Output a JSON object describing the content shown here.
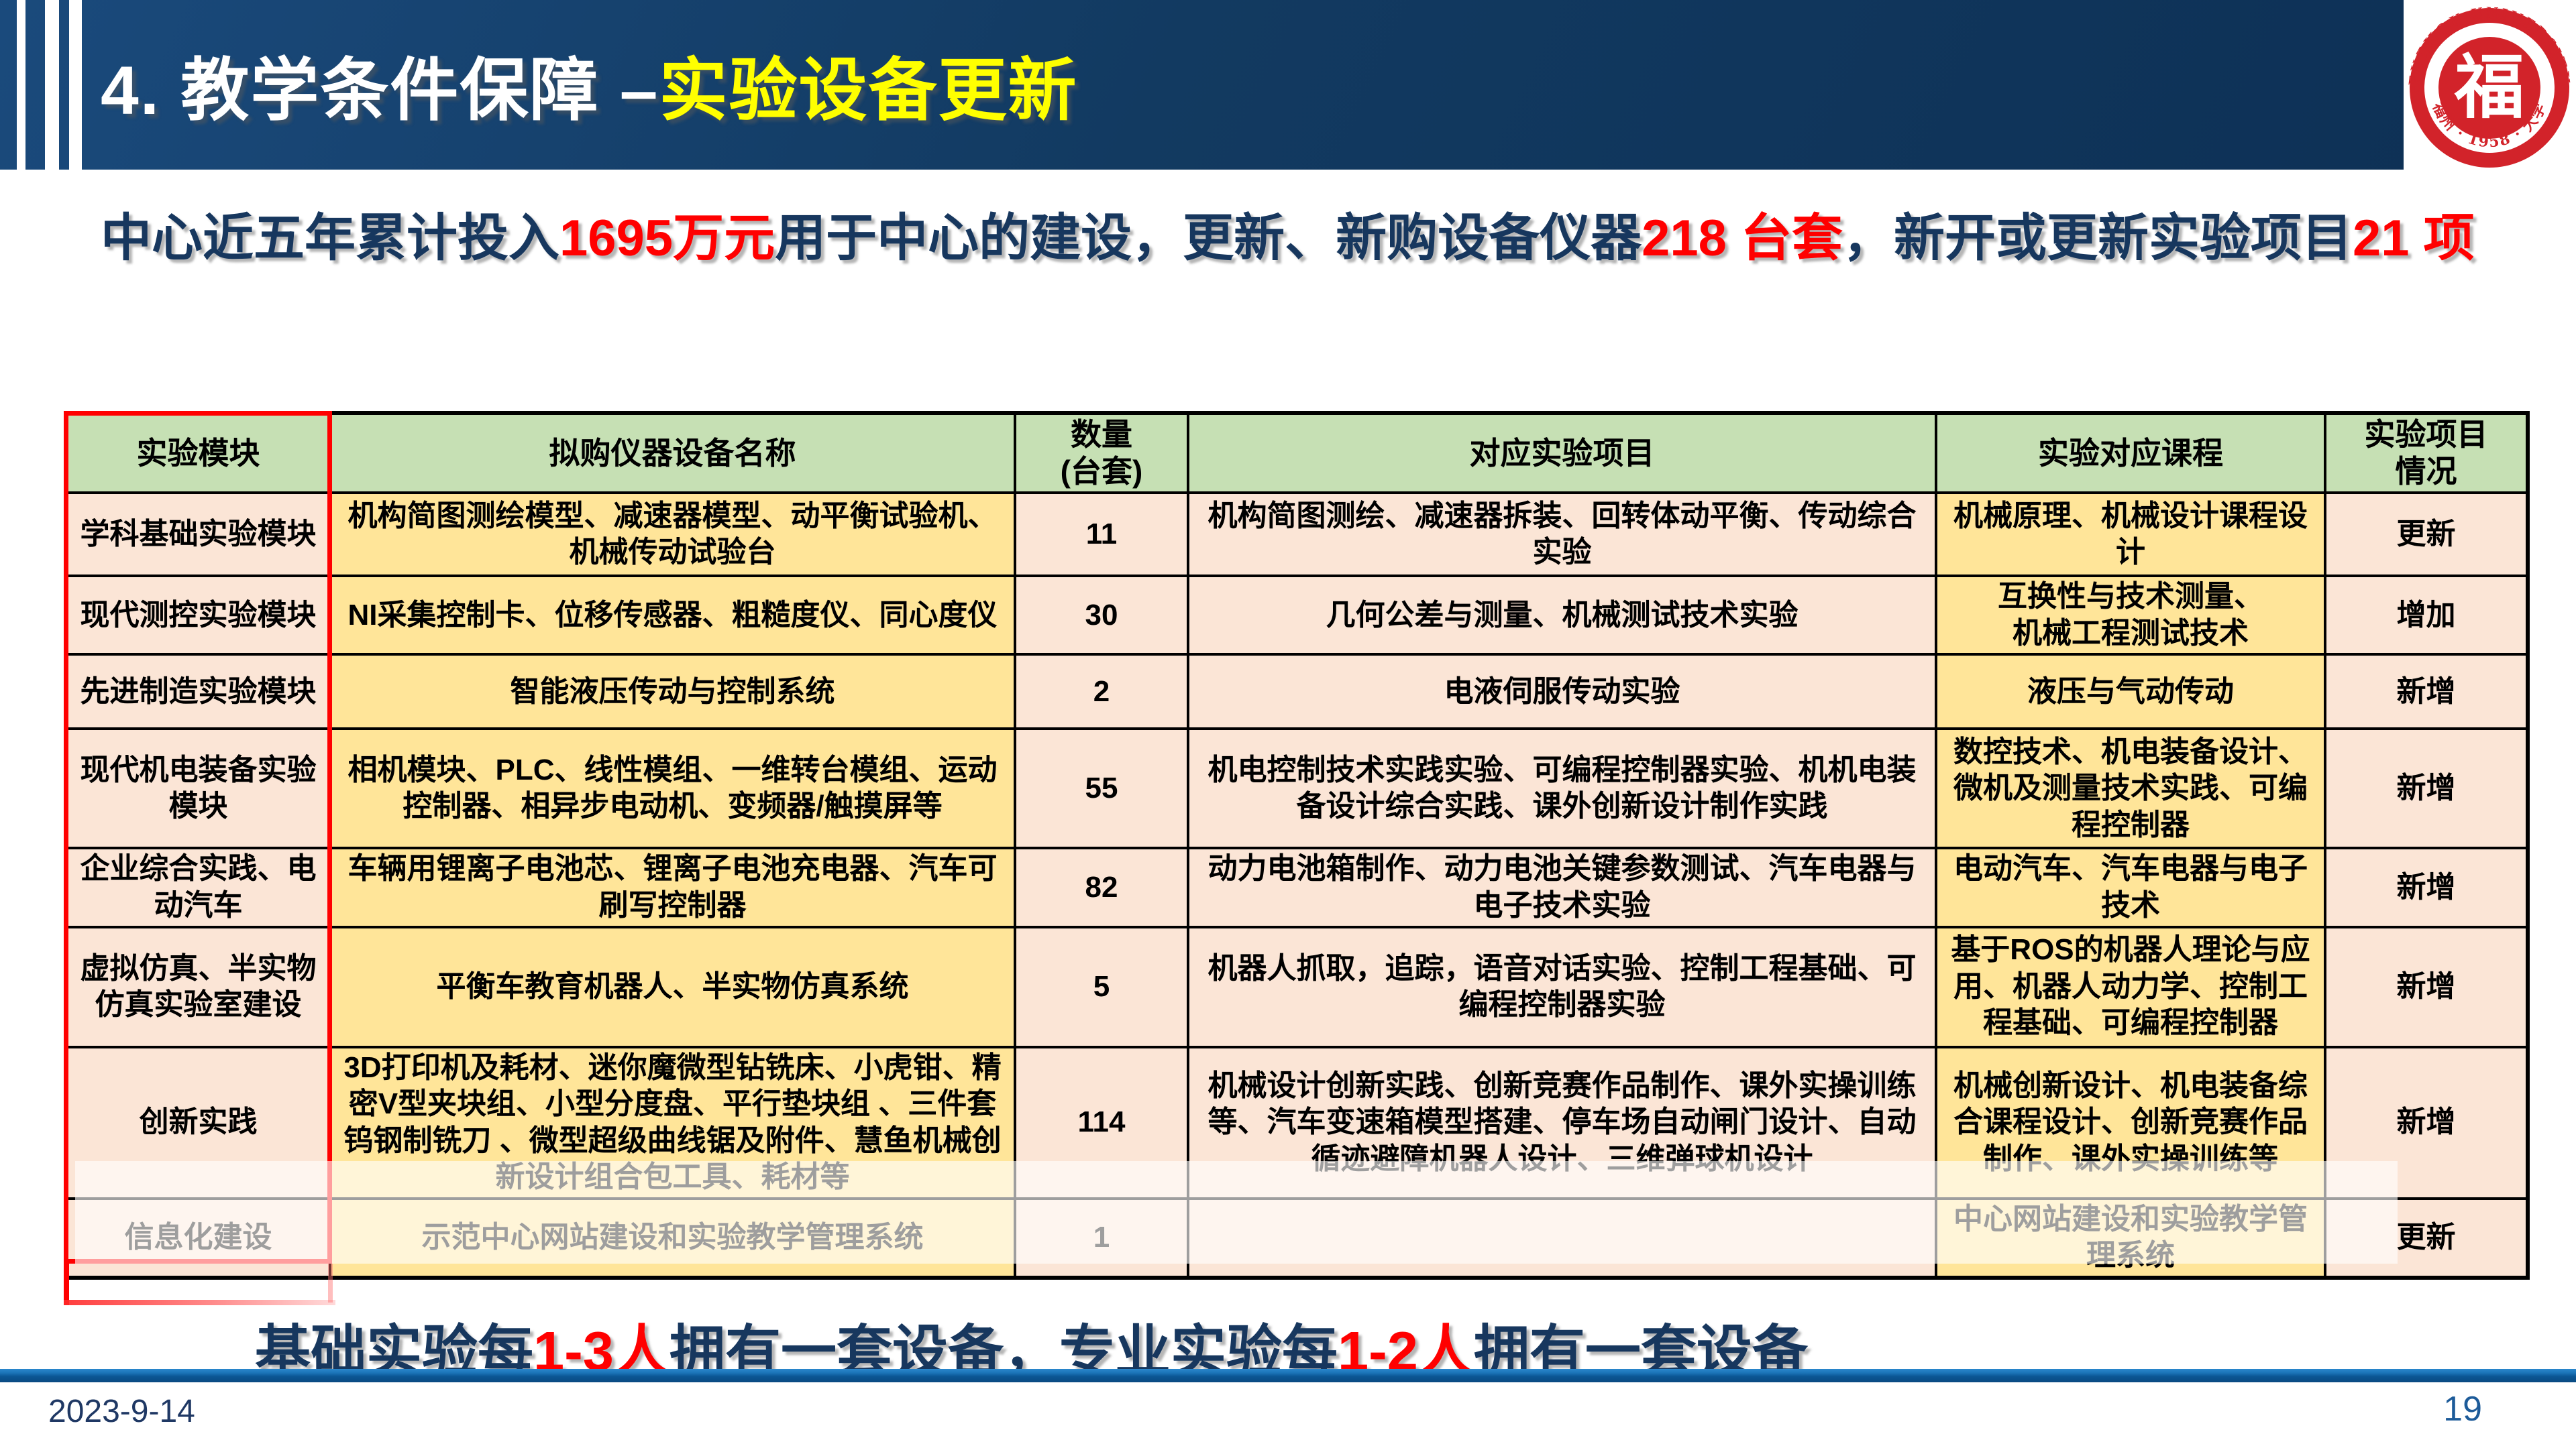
{
  "slide_title": {
    "prefix": "4. 教学条件保障 – ",
    "highlight": "实验设备更新"
  },
  "logo": {
    "ring_text": "FUZHOU UNIVERSITY",
    "center_glyph": "福",
    "bottom_text": "福州 · 1958 · 大学",
    "brand_red": "#D2232A"
  },
  "intro": {
    "segments": [
      {
        "text": "中心近五年累计投入",
        "color": "navy"
      },
      {
        "text": "1695万元",
        "color": "red"
      },
      {
        "text": "用于中心的建设，更新、新购设备仪器",
        "color": "navy"
      },
      {
        "text": "218 台套",
        "color": "red"
      },
      {
        "text": "，新开或更新实验项目",
        "color": "navy"
      },
      {
        "text": "21 项",
        "color": "red"
      }
    ]
  },
  "table": {
    "headers": [
      "实验模块",
      "拟购仪器设备名称",
      "数量\n(台套)",
      "对应实验项目",
      "实验对应课程",
      "实验项目\n情况"
    ],
    "rows": [
      {
        "module": "学科基础实验模块",
        "equipment": "机构简图测绘模型、减速器模型、动平衡试验机、机械传动试验台",
        "qty": "11",
        "projects": "机构简图测绘、减速器拆装、回转体动平衡、传动综合实验",
        "courses": "机械原理、机械设计课程设计",
        "status": "更新"
      },
      {
        "module": "现代测控实验模块",
        "equipment": "NI采集控制卡、位移传感器、粗糙度仪、同心度仪",
        "qty": "30",
        "projects": "几何公差与测量、机械测试技术实验",
        "courses": "互换性与技术测量、\n机械工程测试技术",
        "status": "增加"
      },
      {
        "module": "先进制造实验模块",
        "equipment": "智能液压传动与控制系统",
        "qty": "2",
        "projects": "电液伺服传动实验",
        "courses": "液压与气动传动",
        "status": "新增"
      },
      {
        "module": "现代机电装备实验模块",
        "equipment": "相机模块、PLC、线性模组、一维转台模组、运动控制器、相异步电动机、变频器/触摸屏等",
        "qty": "55",
        "projects": "机电控制技术实践实验、可编程控制器实验、机机电装备设计综合实践、课外创新设计制作实践",
        "courses": "数控技术、机电装备设计、微机及测量技术实践、可编程控制器",
        "status": "新增"
      },
      {
        "module": "企业综合实践、电动汽车",
        "equipment": "车辆用锂离子电池芯、锂离子电池充电器、汽车可刷写控制器",
        "qty": "82",
        "projects": "动力电池箱制作、动力电池关键参数测试、汽车电器与电子技术实验",
        "courses": "电动汽车、汽车电器与电子技术",
        "status": "新增"
      },
      {
        "module": "虚拟仿真、半实物仿真实验室建设",
        "equipment": "平衡车教育机器人、半实物仿真系统",
        "qty": "5",
        "projects": "机器人抓取，追踪，语音对话实验、控制工程基础、可编程控制器实验",
        "courses": "基于ROS的机器人理论与应用、机器人动力学、控制工程基础、可编程控制器",
        "status": "新增"
      },
      {
        "module": "创新实践",
        "equipment": "3D打印机及耗材、迷你魔微型钻铣床、小虎钳、精密V型夹块组、小型分度盘、平行垫块组 、三件套钨钢制铣刀 、微型超级曲线锯及附件、慧鱼机械创新设计组合包工具、耗材等",
        "qty": "114",
        "projects": "机械设计创新实践、创新竞赛作品制作、课外实操训练等、汽车变速箱模型搭建、停车场自动闸门设计、自动循迹避障机器人设计、三维弹球机设计",
        "courses": "机械创新设计、机电装备综合课程设计、创新竞赛作品制作、课外实操训练等",
        "status": "新增"
      },
      {
        "module": "信息化建设",
        "equipment": "示范中心网站建设和实验教学管理系统",
        "qty": "1",
        "projects": "",
        "courses": "中心网站建设和实验教学管理系统",
        "status": "更新"
      }
    ]
  },
  "note": {
    "segments": [
      {
        "text": "基础实验每",
        "color": "navy"
      },
      {
        "text": "1-3人",
        "color": "red"
      },
      {
        "text": "拥有一套设备，专业实验每",
        "color": "navy"
      },
      {
        "text": "1-2人",
        "color": "red"
      },
      {
        "text": "拥有一套设备",
        "color": "navy"
      }
    ]
  },
  "footer": {
    "date": "2023-9-14",
    "page": "19"
  },
  "colors": {
    "header_navy": "#123A61",
    "title_highlight": "#FFFF00",
    "text_navy": "#17375E",
    "accent_red": "#FF0000",
    "table_header_green": "#C6E0B4",
    "table_cell_pink": "#FBE5D6",
    "table_cell_yellow": "#FFE599",
    "footer_bar_blue": "#0B5795",
    "page_number_blue": "#1D5B99"
  }
}
